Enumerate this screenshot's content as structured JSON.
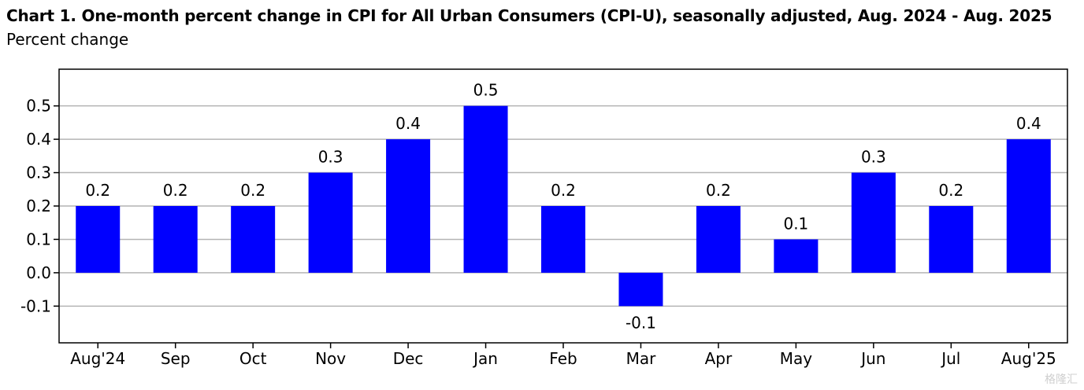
{
  "title": "Chart 1. One-month percent change in CPI for All Urban Consumers (CPI-U), seasonally adjusted, Aug. 2024 - Aug. 2025",
  "subtitle": "Percent change",
  "watermark": "格隆汇",
  "colors": {
    "bar": "#0000ff",
    "grid": "#b4b4b4",
    "axis": "#000000"
  },
  "chart_data": {
    "type": "bar",
    "title": "Chart 1. One-month percent change in CPI for All Urban Consumers (CPI-U), seasonally adjusted, Aug. 2024 - Aug. 2025",
    "ylabel": "Percent change",
    "xlabel": "",
    "categories": [
      "Aug'24",
      "Sep",
      "Oct",
      "Nov",
      "Dec",
      "Jan",
      "Feb",
      "Mar",
      "Apr",
      "May",
      "Jun",
      "Jul",
      "Aug'25"
    ],
    "values": [
      0.2,
      0.2,
      0.2,
      0.3,
      0.4,
      0.5,
      0.2,
      -0.1,
      0.2,
      0.1,
      0.3,
      0.2,
      0.4
    ],
    "data_labels": [
      "0.2",
      "0.2",
      "0.2",
      "0.3",
      "0.4",
      "0.5",
      "0.2",
      "-0.1",
      "0.2",
      "0.1",
      "0.3",
      "0.2",
      "0.4"
    ],
    "yticks": [
      -0.1,
      0.0,
      0.1,
      0.2,
      0.3,
      0.4,
      0.5
    ],
    "ytick_labels": [
      "-0.1",
      "0.0",
      "0.1",
      "0.2",
      "0.3",
      "0.4",
      "0.5"
    ],
    "ylim": [
      -0.21,
      0.61
    ],
    "grid": true,
    "legend": "none"
  }
}
